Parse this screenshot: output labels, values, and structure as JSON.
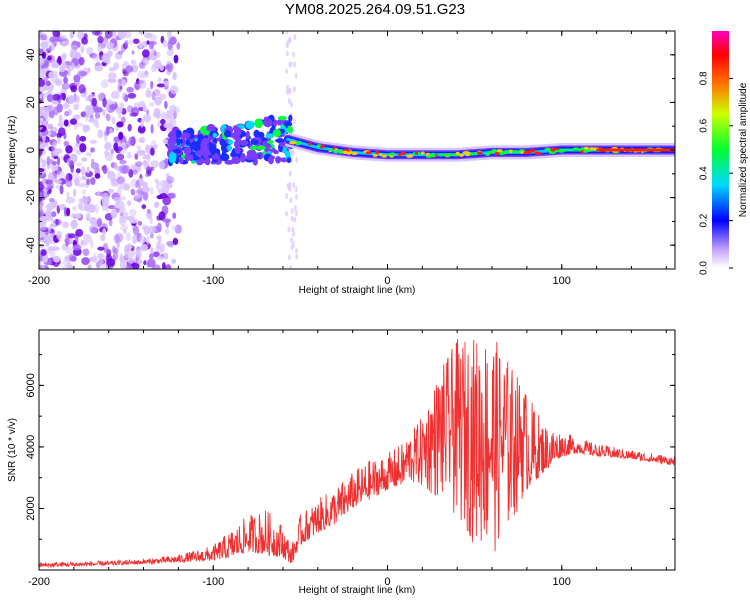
{
  "title": "YM08.2025.264.09.51.G23",
  "colors": {
    "snr_line": "#f03030",
    "frame": "#000000"
  },
  "chart_data": [
    {
      "type": "heatmap",
      "name": "spectrogram",
      "xlabel": "Height of straight line (km)",
      "ylabel": "Frequency (Hz)",
      "xlim": [
        -200,
        165
      ],
      "ylim": [
        -50,
        50
      ],
      "xticks": [
        -200,
        -100,
        0,
        100
      ],
      "yticks": [
        -40,
        -20,
        0,
        20,
        40
      ],
      "ridge": {
        "description_points_x": [
          -120,
          -100,
          -80,
          -60,
          -50,
          -40,
          -20,
          0,
          20,
          40,
          60,
          80,
          100,
          120,
          140,
          165
        ],
        "frequency_hz": [
          1,
          2,
          3,
          5,
          3,
          1,
          -1,
          -2,
          -2,
          -2,
          -1,
          -1,
          0,
          0,
          0,
          0
        ]
      },
      "colorbar": {
        "label": "Normalized spectral amplitude",
        "range": [
          0.0,
          1.0
        ],
        "ticks": [
          "0.0",
          "0.2",
          "0.4",
          "0.6",
          "0.8"
        ]
      }
    },
    {
      "type": "line",
      "name": "snr",
      "xlabel": "Height of straight line (km)",
      "ylabel": "SNR (10 * v/v)",
      "xlim": [
        -200,
        165
      ],
      "ylim": [
        0,
        7800
      ],
      "xticks": [
        -200,
        -100,
        0,
        100
      ],
      "yticks": [
        2000,
        4000,
        6000
      ],
      "envelope": {
        "x": [
          -200,
          -160,
          -140,
          -120,
          -100,
          -90,
          -80,
          -70,
          -60,
          -55,
          -50,
          -40,
          -30,
          -20,
          -10,
          0,
          10,
          20,
          30,
          40,
          50,
          60,
          70,
          80,
          90,
          100,
          110,
          120,
          140,
          165
        ],
        "low": [
          100,
          150,
          200,
          250,
          300,
          400,
          600,
          500,
          400,
          200,
          800,
          1200,
          1500,
          2000,
          2300,
          2600,
          2800,
          2600,
          2200,
          1600,
          800,
          400,
          1200,
          2600,
          3200,
          3700,
          3800,
          3700,
          3600,
          3400
        ],
        "high": [
          250,
          300,
          350,
          500,
          800,
          1300,
          1800,
          2000,
          1500,
          800,
          1800,
          2300,
          2700,
          3200,
          3600,
          3800,
          4200,
          5000,
          6500,
          7500,
          7600,
          7700,
          6800,
          5800,
          4800,
          4500,
          4300,
          4100,
          3900,
          3700
        ]
      }
    }
  ]
}
